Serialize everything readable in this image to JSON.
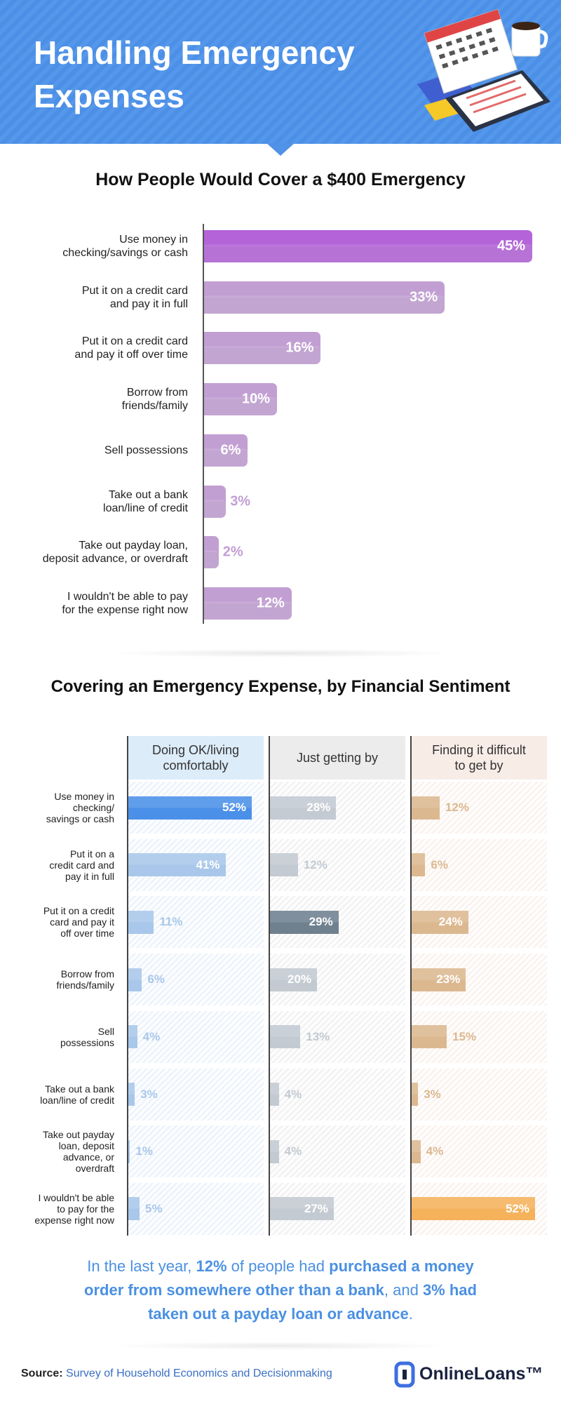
{
  "header": {
    "title": "Handling Emergency\nExpenses"
  },
  "chart_data": [
    {
      "type": "bar",
      "orientation": "horizontal",
      "title": "How People Would Cover a $400 Emergency",
      "categories": [
        "Use money in\nchecking/savings or cash",
        "Put it on a credit card\nand pay it in full",
        "Put it on a credit card\nand pay it off over time",
        "Borrow from\nfriends/family",
        "Sell possessions",
        "Take out a bank\nloan/line of credit",
        "Take out payday loan,\ndeposit advance, or overdraft",
        "I wouldn't be able to pay\nfor the expense right now"
      ],
      "values": [
        45,
        33,
        16,
        10,
        6,
        3,
        2,
        12
      ],
      "value_labels": [
        "45%",
        "33%",
        "16%",
        "10%",
        "6%",
        "3%",
        "2%",
        "12%"
      ],
      "colors": [
        "#b463d8",
        "#c29fd3",
        "#c29fd3",
        "#c29fd3",
        "#c29fd3",
        "#c29fd3",
        "#c29fd3",
        "#c29fd3"
      ]
    },
    {
      "type": "panel-bar",
      "title": "Covering an Emergency Expense, by Financial Sentiment",
      "categories": [
        "Use money in\nchecking/\nsavings or cash",
        "Put it on a\ncredit card and\npay it in full",
        "Put it on a credit\ncard and pay it\noff over time",
        "Borrow from\nfriends/family",
        "Sell\npossessions",
        "Take out a bank\nloan/line of credit",
        "Take out payday\nloan, deposit\nadvance, or\noverdraft",
        "I wouldn't be able\nto pay for the\nexpense right now"
      ],
      "series": [
        {
          "name": "Doing OK/living\ncomfortably",
          "values": [
            52,
            41,
            11,
            6,
            4,
            3,
            1,
            5
          ],
          "value_labels": [
            "52%",
            "41%",
            "11%",
            "6%",
            "4%",
            "3%",
            "1%",
            "5%"
          ],
          "colors": [
            "#4a90e8",
            "#a9c7ea",
            "#a9c7ea",
            "#a9c7ea",
            "#a9c7ea",
            "#a9c7ea",
            "#a9c7ea",
            "#a9c7ea"
          ],
          "header_color": "#dcecf9",
          "tint": "#eef4fb"
        },
        {
          "name": "Just getting by",
          "values": [
            28,
            12,
            29,
            20,
            13,
            4,
            4,
            27
          ],
          "value_labels": [
            "28%",
            "12%",
            "29%",
            "20%",
            "13%",
            "4%",
            "4%",
            "27%"
          ],
          "colors": [
            "#c3cad1",
            "#c3cad1",
            "#6f808f",
            "#c3cad1",
            "#c3cad1",
            "#c3cad1",
            "#c3cad1",
            "#c3cad1"
          ],
          "header_color": "#ececec",
          "tint": "#f3f3f3"
        },
        {
          "name": "Finding it difficult\nto get by",
          "values": [
            12,
            6,
            24,
            23,
            15,
            3,
            4,
            52
          ],
          "value_labels": [
            "12%",
            "6%",
            "24%",
            "23%",
            "15%",
            "3%",
            "4%",
            "52%"
          ],
          "colors": [
            "#dcb890",
            "#dcb890",
            "#dcb890",
            "#dcb890",
            "#dcb890",
            "#dcb890",
            "#dcb890",
            "#f5b25b"
          ],
          "header_color": "#f7ece6",
          "tint": "#faf3ef"
        }
      ]
    }
  ],
  "callout": {
    "segments": [
      {
        "text": "In the last year, ",
        "bold": false
      },
      {
        "text": "12%",
        "bold": true
      },
      {
        "text": " of people had ",
        "bold": false
      },
      {
        "text": "purchased a money order from somewhere other than a bank",
        "bold": true
      },
      {
        "text": ", and ",
        "bold": false
      },
      {
        "text": "3% had taken out a payday loan or advance",
        "bold": true
      },
      {
        "text": ".",
        "bold": false
      }
    ]
  },
  "source": {
    "label": "Source:",
    "text": "Survey of Household Economics and Decisionmaking"
  },
  "brand": "OnlineLoans™"
}
